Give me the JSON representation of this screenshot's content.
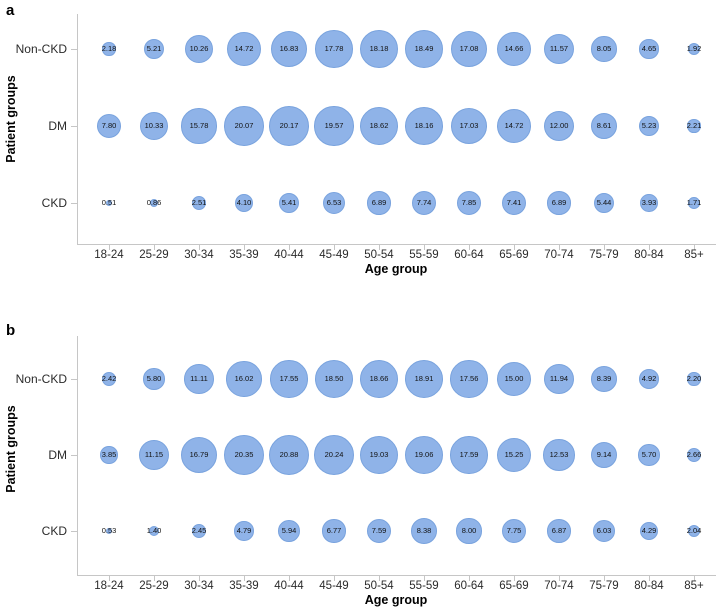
{
  "figure": {
    "background": "#ffffff",
    "bubble_fill": "#8FB3E8",
    "bubble_border": "#79A3DE",
    "axis_color": "#c6c6c6",
    "text_color": "#2b2b2b",
    "groups": [
      "Non-CKD",
      "DM",
      "CKD"
    ],
    "age_groups": [
      "18-24",
      "25-29",
      "30-34",
      "35-39",
      "40-44",
      "45-49",
      "50-54",
      "55-59",
      "60-64",
      "65-69",
      "70-74",
      "75-79",
      "80-84",
      "85+"
    ]
  },
  "chart_data": [
    {
      "type": "scatter",
      "subtype": "bubble",
      "panel": "a",
      "xlabel": "Age group",
      "ylabel": "Patient groups",
      "legend": "none",
      "grid": false,
      "value_encoding": "bubble area proportional to value; value printed at bubble center",
      "categories": [
        "18-24",
        "25-29",
        "30-34",
        "35-39",
        "40-44",
        "45-49",
        "50-54",
        "55-59",
        "60-64",
        "65-69",
        "70-74",
        "75-79",
        "80-84",
        "85+"
      ],
      "series": [
        {
          "name": "Non-CKD",
          "values": [
            2.18,
            5.21,
            10.26,
            14.72,
            16.83,
            17.78,
            18.18,
            18.49,
            17.08,
            14.66,
            11.57,
            8.05,
            4.65,
            1.92
          ]
        },
        {
          "name": "DM",
          "values": [
            7.8,
            10.33,
            15.78,
            20.07,
            20.17,
            19.57,
            18.62,
            18.16,
            17.03,
            14.72,
            12.0,
            8.61,
            5.23,
            2.21
          ]
        },
        {
          "name": "CKD",
          "values": [
            0.51,
            0.86,
            2.51,
            4.1,
            5.41,
            6.53,
            6.89,
            7.74,
            7.85,
            7.41,
            6.89,
            5.44,
            3.93,
            1.71
          ]
        }
      ]
    },
    {
      "type": "scatter",
      "subtype": "bubble",
      "panel": "b",
      "xlabel": "Age group",
      "ylabel": "Patient groups",
      "legend": "none",
      "grid": false,
      "value_encoding": "bubble area proportional to value; value printed at bubble center",
      "categories": [
        "18-24",
        "25-29",
        "30-34",
        "35-39",
        "40-44",
        "45-49",
        "50-54",
        "55-59",
        "60-64",
        "65-69",
        "70-74",
        "75-79",
        "80-84",
        "85+"
      ],
      "series": [
        {
          "name": "Non-CKD",
          "values": [
            2.42,
            5.8,
            11.11,
            16.02,
            17.55,
            18.5,
            18.66,
            18.91,
            17.56,
            15.0,
            11.94,
            8.39,
            4.92,
            2.2
          ]
        },
        {
          "name": "DM",
          "values": [
            3.85,
            11.15,
            16.79,
            20.35,
            20.88,
            20.24,
            19.03,
            19.06,
            17.59,
            15.25,
            12.53,
            9.14,
            5.7,
            2.66
          ]
        },
        {
          "name": "CKD",
          "values": [
            0.53,
            1.4,
            2.45,
            4.79,
            5.94,
            6.77,
            7.59,
            8.38,
            8.0,
            7.75,
            6.87,
            6.03,
            4.29,
            2.04
          ]
        }
      ]
    }
  ]
}
